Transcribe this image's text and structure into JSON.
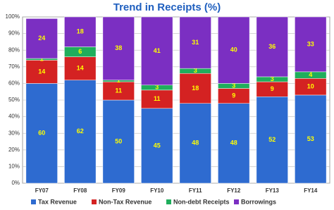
{
  "chart_data": {
    "type": "stacked_bar",
    "title": "Trend in Receipts (%)",
    "categories": [
      "FY07",
      "FY08",
      "FY09",
      "FY10",
      "FY11",
      "FY12",
      "FY13",
      "FY14"
    ],
    "series": [
      {
        "name": "Tax Revenue",
        "color": "#2e6bd0",
        "values": [
          60,
          62,
          50,
          45,
          48,
          48,
          52,
          53
        ]
      },
      {
        "name": "Non-Tax Revenue",
        "color": "#d42222",
        "values": [
          14,
          14,
          11,
          11,
          18,
          9,
          9,
          10
        ]
      },
      {
        "name": "Non-debt Receipts",
        "color": "#1fae5c",
        "values": [
          1,
          6,
          1,
          3,
          3,
          3,
          3,
          4
        ]
      },
      {
        "name": "Borrowings",
        "color": "#7b2fc2",
        "values": [
          24,
          18,
          38,
          41,
          31,
          40,
          36,
          33
        ]
      }
    ],
    "ylim": [
      0,
      100
    ],
    "yticks": [
      {
        "value": 0,
        "label": "0%"
      },
      {
        "value": 10,
        "label": "10%"
      },
      {
        "value": 20,
        "label": "20%"
      },
      {
        "value": 30,
        "label": "30%"
      },
      {
        "value": 40,
        "label": "40%"
      },
      {
        "value": 50,
        "label": "50%"
      },
      {
        "value": 60,
        "label": "60%"
      },
      {
        "value": 70,
        "label": "70%"
      },
      {
        "value": 80,
        "label": "80%"
      },
      {
        "value": 90,
        "label": "90%"
      },
      {
        "value": 100,
        "label": "100%"
      }
    ],
    "grid": true
  }
}
